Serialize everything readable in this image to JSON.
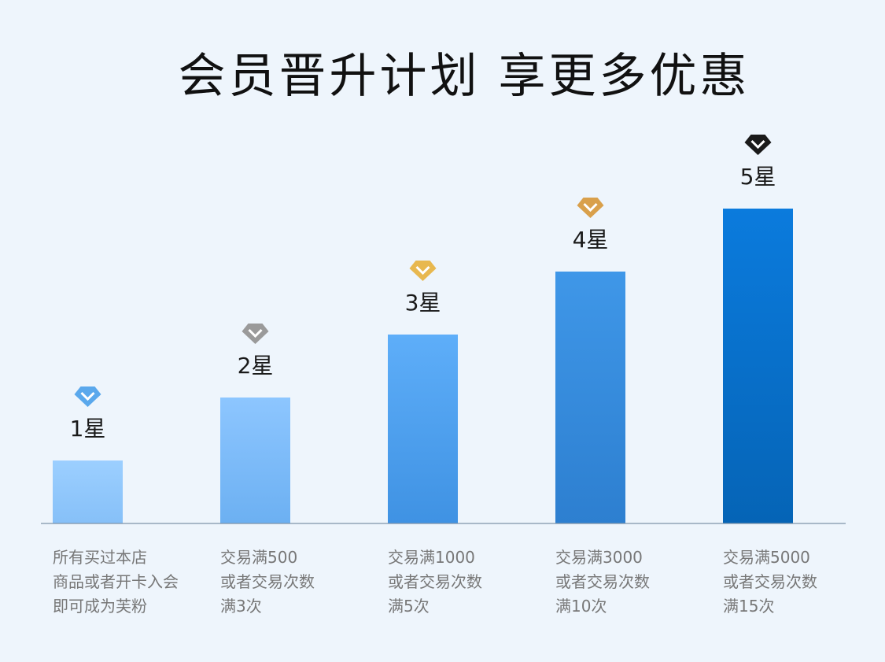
{
  "title": "会员晋升计划  享更多优惠",
  "chart_data": {
    "type": "bar",
    "categories": [
      "1星",
      "2星",
      "3星",
      "4星",
      "5星"
    ],
    "values": [
      1,
      2,
      3,
      4,
      5
    ],
    "descriptions": [
      "所有买过本店\n商品或者开卡入会\n即可成为芙粉",
      "交易满500\n或者交易次数\n满3次",
      "交易满1000\n或者交易次数\n满5次",
      "交易满3000\n或者交易次数\n满10次",
      "交易满5000\n或者交易次数\n满15次"
    ],
    "icons": [
      "diamond-icon-blue",
      "diamond-icon-silver",
      "diamond-icon-gold",
      "diamond-icon-gold",
      "diamond-icon-black"
    ],
    "colors": {
      "bars": [
        [
          "#9ccfff",
          "#86c0f8"
        ],
        [
          "#8dc6ff",
          "#6cb0f2"
        ],
        [
          "#5eaef9",
          "#3f92e3"
        ],
        [
          "#3f97e8",
          "#2d7fd0"
        ],
        [
          "#0b7bdd",
          "#0564b6"
        ]
      ],
      "icons": [
        "#5aa8ec",
        "#9a9a9a",
        "#e8b84f",
        "#d9a04b",
        "#1a1a1a"
      ],
      "axis": "#7f93a8"
    },
    "ylim": [
      0,
      5.4
    ]
  }
}
